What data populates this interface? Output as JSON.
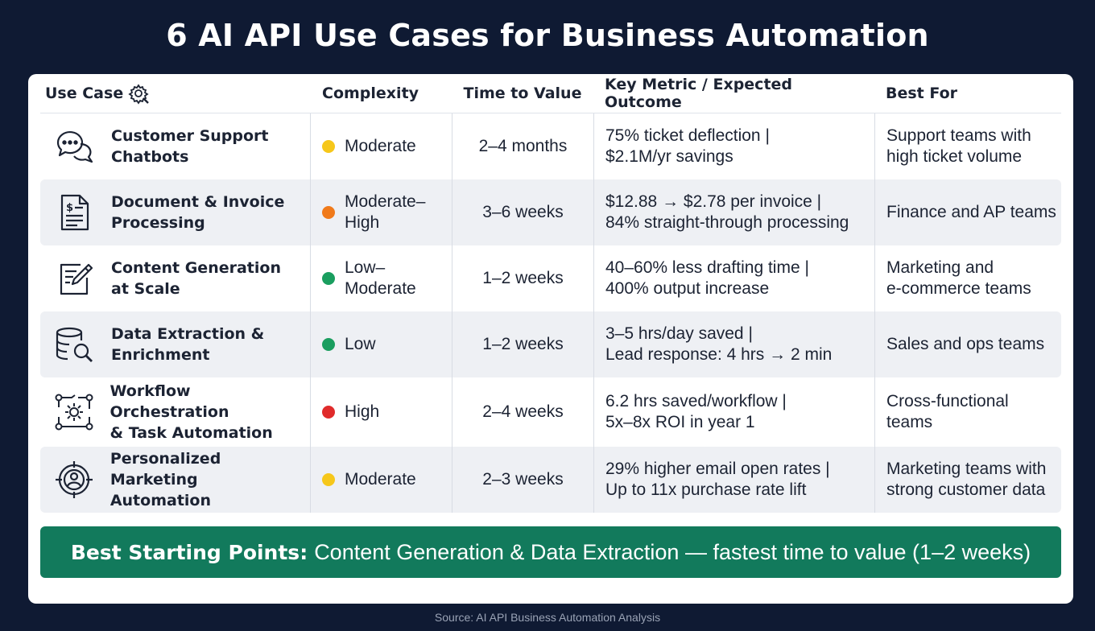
{
  "title": "6 AI API Use Cases for Business Automation",
  "headers": {
    "use_case": "Use Case",
    "complexity": "Complexity",
    "time_to_value": "Time to Value",
    "key_metric": "Key Metric / Expected Outcome",
    "best_for": "Best For"
  },
  "header_icon": "gear-settings-icon",
  "complexity_colors": {
    "Moderate": "#f6c71a",
    "Moderate–High": "#f07a1a",
    "Low–Moderate": "#1a9e5f",
    "Low": "#1a9e5f",
    "High": "#e02b2b"
  },
  "rows": [
    {
      "name": "Customer Support\nChatbots",
      "icon": "chat-bubbles-icon",
      "complexity": "Moderate",
      "complexity_color": "#f6c71a",
      "time": "2–4 months",
      "metric": "75% ticket deflection |\n$2.1M/yr savings",
      "best_for": "Support teams with\nhigh ticket volume"
    },
    {
      "name": "Document & Invoice\nProcessing",
      "icon": "invoice-document-icon",
      "complexity": "Moderate–\nHigh",
      "complexity_color": "#f07a1a",
      "time": "3–6 weeks",
      "metric": "$12.88 → $2.78 per invoice |\n84% straight-through processing",
      "best_for": "Finance and AP teams"
    },
    {
      "name": "Content Generation\nat Scale",
      "icon": "edit-pencil-icon",
      "complexity": "Low–\nModerate",
      "complexity_color": "#1a9e5f",
      "time": "1–2 weeks",
      "metric": "40–60% less drafting time |\n400% output increase",
      "best_for": "Marketing and\ne-commerce teams"
    },
    {
      "name": "Data Extraction &\nEnrichment",
      "icon": "database-search-icon",
      "complexity": "Low",
      "complexity_color": "#1a9e5f",
      "time": "1–2 weeks",
      "metric": "3–5 hrs/day saved |\nLead response: 4 hrs → 2 min",
      "best_for": "Sales and ops teams"
    },
    {
      "name": "Workflow Orchestration\n& Task Automation",
      "icon": "workflow-gear-icon",
      "complexity": "High",
      "complexity_color": "#e02b2b",
      "time": "2–4 weeks",
      "metric": "6.2 hrs saved/workflow |\n5x–8x ROI in year 1",
      "best_for": "Cross-functional\nteams"
    },
    {
      "name": "Personalized Marketing\nAutomation",
      "icon": "target-person-icon",
      "complexity": "Moderate",
      "complexity_color": "#f6c71a",
      "time": "2–3 weeks",
      "metric": "29% higher email open rates |\nUp to 11x purchase rate lift",
      "best_for": "Marketing teams with\nstrong customer data"
    }
  ],
  "banner": {
    "bold": "Best Starting Points:",
    "text": "Content Generation & Data Extraction — fastest time to value (1–2 weeks)",
    "color": "#127a5c"
  },
  "source": "Source: AI API Business Automation Analysis"
}
